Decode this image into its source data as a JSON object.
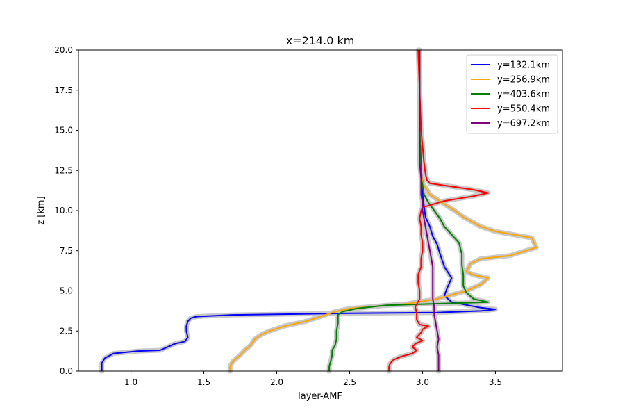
{
  "chart_data": {
    "type": "line",
    "title": "x=214.0 km",
    "xlabel": "layer-AMF",
    "ylabel": "z [km]",
    "xlim": [
      0.64,
      3.96
    ],
    "ylim": [
      0,
      20
    ],
    "x_ticks": [
      "1.0",
      "1.5",
      "2.0",
      "2.5",
      "3.0",
      "3.5"
    ],
    "y_ticks": [
      "0.0",
      "2.5",
      "5.0",
      "7.5",
      "10.0",
      "12.5",
      "15.0",
      "17.5",
      "20.0"
    ],
    "grid": false,
    "legend_position": "top-right",
    "uncertainty_band_color": "#c8c8c8",
    "series": [
      {
        "name": "y=132.1km",
        "color": "#0000ff",
        "points": [
          [
            0.8,
            0.0
          ],
          [
            0.8,
            0.5
          ],
          [
            0.82,
            0.8
          ],
          [
            0.88,
            1.1
          ],
          [
            1.05,
            1.25
          ],
          [
            1.2,
            1.3
          ],
          [
            1.25,
            1.5
          ],
          [
            1.3,
            1.7
          ],
          [
            1.37,
            1.85
          ],
          [
            1.39,
            2.1
          ],
          [
            1.38,
            2.5
          ],
          [
            1.38,
            2.8
          ],
          [
            1.39,
            3.1
          ],
          [
            1.41,
            3.3
          ],
          [
            1.45,
            3.4
          ],
          [
            1.7,
            3.5
          ],
          [
            2.5,
            3.6
          ],
          [
            3.1,
            3.65
          ],
          [
            3.4,
            3.75
          ],
          [
            3.5,
            3.85
          ],
          [
            3.4,
            3.95
          ],
          [
            3.2,
            4.3
          ],
          [
            3.15,
            4.7
          ],
          [
            3.17,
            5.2
          ],
          [
            3.2,
            5.8
          ],
          [
            3.15,
            6.5
          ],
          [
            3.12,
            7.3
          ],
          [
            3.1,
            7.9
          ],
          [
            3.07,
            8.4
          ],
          [
            3.05,
            9.0
          ],
          [
            3.02,
            9.6
          ],
          [
            3.01,
            10.3
          ],
          [
            3.0,
            11.0
          ],
          [
            3.0,
            11.8
          ],
          [
            2.99,
            12.5
          ],
          [
            2.99,
            13.5
          ],
          [
            2.98,
            15.0
          ],
          [
            2.98,
            17.5
          ],
          [
            2.98,
            20.0
          ]
        ]
      },
      {
        "name": "y=256.9km",
        "color": "#ffa500",
        "points": [
          [
            1.68,
            0.0
          ],
          [
            1.68,
            0.3
          ],
          [
            1.7,
            0.6
          ],
          [
            1.75,
            1.0
          ],
          [
            1.78,
            1.3
          ],
          [
            1.82,
            1.6
          ],
          [
            1.85,
            2.0
          ],
          [
            1.9,
            2.3
          ],
          [
            1.95,
            2.5
          ],
          [
            2.05,
            2.8
          ],
          [
            2.2,
            3.1
          ],
          [
            2.3,
            3.4
          ],
          [
            2.4,
            3.7
          ],
          [
            2.5,
            3.9
          ],
          [
            2.7,
            4.05
          ],
          [
            2.9,
            4.2
          ],
          [
            3.1,
            4.5
          ],
          [
            3.3,
            5.0
          ],
          [
            3.4,
            5.4
          ],
          [
            3.45,
            5.8
          ],
          [
            3.35,
            6.0
          ],
          [
            3.3,
            6.2
          ],
          [
            3.33,
            6.7
          ],
          [
            3.4,
            7.0
          ],
          [
            3.6,
            7.2
          ],
          [
            3.78,
            7.7
          ],
          [
            3.75,
            8.3
          ],
          [
            3.5,
            8.7
          ],
          [
            3.4,
            9.0
          ],
          [
            3.28,
            9.6
          ],
          [
            3.22,
            10.0
          ],
          [
            3.15,
            10.4
          ],
          [
            3.1,
            10.7
          ],
          [
            3.05,
            11.0
          ],
          [
            3.03,
            11.3
          ],
          [
            3.0,
            11.7
          ],
          [
            2.99,
            12.5
          ],
          [
            2.99,
            13.5
          ],
          [
            2.98,
            15.0
          ],
          [
            2.98,
            17.5
          ],
          [
            2.98,
            20.0
          ]
        ]
      },
      {
        "name": "y=403.6km",
        "color": "#008000",
        "points": [
          [
            2.36,
            0.0
          ],
          [
            2.36,
            0.3
          ],
          [
            2.37,
            0.6
          ],
          [
            2.38,
            1.0
          ],
          [
            2.38,
            1.3
          ],
          [
            2.4,
            1.6
          ],
          [
            2.41,
            2.0
          ],
          [
            2.41,
            2.5
          ],
          [
            2.42,
            3.0
          ],
          [
            2.42,
            3.5
          ],
          [
            2.45,
            3.7
          ],
          [
            2.55,
            3.9
          ],
          [
            2.75,
            4.1
          ],
          [
            3.1,
            4.2
          ],
          [
            3.45,
            4.3
          ],
          [
            3.35,
            4.5
          ],
          [
            3.3,
            4.9
          ],
          [
            3.28,
            5.3
          ],
          [
            3.28,
            6.0
          ],
          [
            3.27,
            6.6
          ],
          [
            3.27,
            7.3
          ],
          [
            3.25,
            8.0
          ],
          [
            3.2,
            8.5
          ],
          [
            3.15,
            9.0
          ],
          [
            3.12,
            9.5
          ],
          [
            3.08,
            10.0
          ],
          [
            3.04,
            10.5
          ],
          [
            3.01,
            11.0
          ],
          [
            3.0,
            11.6
          ],
          [
            2.99,
            12.0
          ],
          [
            2.99,
            13.0
          ],
          [
            2.98,
            15.0
          ],
          [
            2.98,
            17.5
          ],
          [
            2.98,
            20.0
          ]
        ]
      },
      {
        "name": "y=550.4km",
        "color": "#ff0000",
        "points": [
          [
            2.77,
            0.0
          ],
          [
            2.77,
            0.3
          ],
          [
            2.78,
            0.5
          ],
          [
            2.8,
            0.7
          ],
          [
            2.85,
            0.9
          ],
          [
            2.93,
            1.1
          ],
          [
            2.96,
            1.3
          ],
          [
            2.93,
            1.5
          ],
          [
            2.95,
            1.7
          ],
          [
            3.0,
            1.9
          ],
          [
            2.96,
            2.1
          ],
          [
            2.99,
            2.4
          ],
          [
            3.0,
            2.6
          ],
          [
            3.04,
            2.8
          ],
          [
            2.98,
            2.9
          ],
          [
            2.96,
            3.2
          ],
          [
            2.96,
            3.6
          ],
          [
            2.95,
            4.0
          ],
          [
            2.98,
            4.5
          ],
          [
            2.98,
            5.0
          ],
          [
            2.97,
            5.5
          ],
          [
            2.97,
            6.0
          ],
          [
            2.99,
            6.5
          ],
          [
            2.99,
            7.0
          ],
          [
            3.0,
            7.5
          ],
          [
            3.0,
            8.0
          ],
          [
            2.99,
            8.5
          ],
          [
            2.99,
            9.0
          ],
          [
            2.98,
            9.5
          ],
          [
            2.99,
            10.0
          ],
          [
            3.0,
            10.2
          ],
          [
            3.15,
            10.6
          ],
          [
            3.35,
            10.9
          ],
          [
            3.45,
            11.1
          ],
          [
            3.35,
            11.3
          ],
          [
            3.2,
            11.5
          ],
          [
            3.05,
            11.7
          ],
          [
            3.03,
            11.9
          ],
          [
            3.02,
            12.3
          ],
          [
            3.01,
            13.0
          ],
          [
            3.0,
            14.0
          ],
          [
            2.99,
            15.0
          ],
          [
            2.98,
            17.5
          ],
          [
            2.97,
            20.0
          ]
        ]
      },
      {
        "name": "y=697.2km",
        "color": "#800080",
        "points": [
          [
            3.11,
            0.0
          ],
          [
            3.11,
            0.5
          ],
          [
            3.11,
            1.0
          ],
          [
            3.1,
            1.5
          ],
          [
            3.11,
            2.0
          ],
          [
            3.1,
            2.5
          ],
          [
            3.09,
            3.0
          ],
          [
            3.08,
            3.5
          ],
          [
            3.08,
            4.0
          ],
          [
            3.07,
            4.5
          ],
          [
            3.07,
            5.0
          ],
          [
            3.07,
            5.5
          ],
          [
            3.07,
            6.0
          ],
          [
            3.07,
            6.5
          ],
          [
            3.06,
            7.0
          ],
          [
            3.05,
            7.5
          ],
          [
            3.04,
            8.0
          ],
          [
            3.03,
            8.5
          ],
          [
            3.02,
            9.0
          ],
          [
            3.01,
            9.5
          ],
          [
            3.0,
            10.0
          ],
          [
            3.0,
            10.5
          ],
          [
            2.99,
            11.0
          ],
          [
            2.99,
            11.5
          ],
          [
            2.99,
            12.0
          ],
          [
            2.98,
            13.0
          ],
          [
            2.98,
            15.0
          ],
          [
            2.98,
            17.5
          ],
          [
            2.98,
            20.0
          ]
        ]
      }
    ]
  }
}
